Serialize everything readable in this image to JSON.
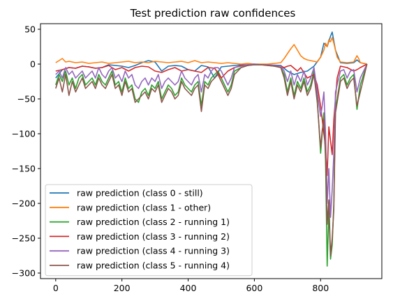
{
  "chart_data": {
    "type": "line",
    "title": "Test prediction raw confidences",
    "xlabel": "",
    "ylabel": "",
    "xlim": [
      -46,
      985
    ],
    "ylim": [
      -308,
      58
    ],
    "xticks": [
      0,
      200,
      400,
      600,
      800
    ],
    "yticks": [
      50,
      0,
      -50,
      -100,
      -150,
      -200,
      -250,
      -300
    ],
    "grid": false,
    "legend_position": "lower-left",
    "series": [
      {
        "name": "raw prediction (class 0 - still)",
        "color": "#1f77b4",
        "x": [
          0,
          20,
          40,
          60,
          80,
          100,
          120,
          140,
          155,
          160,
          180,
          200,
          220,
          240,
          260,
          280,
          300,
          320,
          340,
          360,
          380,
          400,
          420,
          440,
          460,
          480,
          500,
          520,
          540,
          560,
          600,
          640,
          680,
          700,
          720,
          740,
          760,
          780,
          800,
          810,
          820,
          830,
          835,
          845,
          860,
          880,
          900,
          910,
          920,
          940
        ],
        "values": [
          -20,
          -8,
          -5,
          -6,
          -3,
          -4,
          -6,
          -5,
          -2,
          -1,
          -2,
          -3,
          -5,
          -2,
          2,
          5,
          3,
          -10,
          -3,
          -2,
          -3,
          -8,
          -10,
          -2,
          -4,
          -20,
          -4,
          -3,
          -2,
          -1,
          -1,
          -1,
          -2,
          -10,
          -15,
          -12,
          -10,
          -3,
          10,
          30,
          25,
          40,
          46,
          20,
          2,
          1,
          2,
          6,
          2,
          0
        ]
      },
      {
        "name": "raw prediction (class 1 - other)",
        "color": "#ff7f0e",
        "x": [
          0,
          10,
          20,
          30,
          40,
          60,
          80,
          100,
          120,
          140,
          160,
          180,
          200,
          220,
          240,
          260,
          280,
          300,
          320,
          340,
          360,
          380,
          400,
          420,
          440,
          460,
          480,
          500,
          520,
          540,
          560,
          580,
          600,
          620,
          640,
          660,
          680,
          690,
          700,
          710,
          720,
          730,
          740,
          750,
          760,
          780,
          790,
          800,
          810,
          815,
          820,
          825,
          830,
          835,
          840,
          850,
          860,
          880,
          900,
          910,
          915,
          920,
          940
        ],
        "values": [
          2,
          5,
          8,
          3,
          4,
          2,
          3,
          1,
          2,
          3,
          1,
          2,
          3,
          4,
          2,
          3,
          2,
          4,
          3,
          2,
          3,
          4,
          2,
          5,
          2,
          3,
          2,
          1,
          2,
          1,
          0,
          1,
          0,
          0,
          0,
          1,
          2,
          8,
          15,
          22,
          28,
          20,
          12,
          8,
          6,
          4,
          3,
          10,
          20,
          30,
          25,
          35,
          32,
          38,
          30,
          10,
          3,
          2,
          3,
          12,
          8,
          2,
          0
        ]
      },
      {
        "name": "raw prediction (class 2 - running 1)",
        "color": "#2ca02c",
        "x": [
          0,
          10,
          20,
          30,
          40,
          50,
          60,
          70,
          80,
          90,
          100,
          110,
          120,
          130,
          140,
          150,
          160,
          170,
          180,
          190,
          200,
          210,
          220,
          230,
          240,
          250,
          260,
          270,
          280,
          290,
          300,
          310,
          320,
          330,
          340,
          350,
          360,
          370,
          380,
          390,
          400,
          410,
          420,
          430,
          440,
          450,
          460,
          470,
          480,
          490,
          500,
          510,
          520,
          530,
          540,
          560,
          580,
          600,
          620,
          640,
          660,
          680,
          690,
          700,
          710,
          720,
          730,
          740,
          750,
          760,
          770,
          780,
          790,
          800,
          805,
          810,
          815,
          820,
          825,
          830,
          835,
          840,
          845,
          850,
          860,
          870,
          880,
          890,
          900,
          910,
          920,
          940
        ],
        "values": [
          -30,
          -15,
          -25,
          -10,
          -30,
          -20,
          -35,
          -20,
          -15,
          -30,
          -25,
          -20,
          -30,
          -15,
          -25,
          -30,
          -20,
          -10,
          -30,
          -25,
          -40,
          -20,
          -35,
          -30,
          -50,
          -55,
          -40,
          -35,
          -45,
          -30,
          -35,
          -25,
          -50,
          -40,
          -30,
          -35,
          -45,
          -40,
          -20,
          -30,
          -35,
          -40,
          -30,
          -25,
          -60,
          -25,
          -30,
          -20,
          -15,
          -10,
          -20,
          -30,
          -40,
          -30,
          -10,
          -5,
          -2,
          -1,
          -1,
          -2,
          -3,
          -5,
          -15,
          -40,
          -20,
          -45,
          -25,
          -35,
          -20,
          -40,
          -30,
          -10,
          -50,
          -128,
          -100,
          -70,
          -140,
          -290,
          -210,
          -280,
          -260,
          -200,
          -60,
          -50,
          -20,
          -15,
          -30,
          -20,
          -15,
          -65,
          -30,
          0
        ]
      },
      {
        "name": "raw prediction (class 3 - running 2)",
        "color": "#d62728",
        "x": [
          0,
          20,
          40,
          60,
          80,
          100,
          120,
          140,
          160,
          180,
          200,
          220,
          240,
          260,
          280,
          300,
          320,
          340,
          360,
          380,
          400,
          420,
          440,
          460,
          480,
          500,
          520,
          540,
          560,
          580,
          600,
          620,
          640,
          660,
          680,
          690,
          700,
          710,
          720,
          730,
          740,
          760,
          780,
          790,
          800,
          810,
          815,
          820,
          825,
          830,
          835,
          840,
          850,
          860,
          880,
          900,
          910,
          920,
          940
        ],
        "values": [
          -10,
          -8,
          -5,
          -6,
          -3,
          -4,
          -6,
          -5,
          -2,
          -8,
          -5,
          -10,
          -5,
          -3,
          -4,
          -10,
          -12,
          -8,
          -5,
          -10,
          -8,
          -10,
          -12,
          -5,
          -6,
          -20,
          -10,
          -5,
          -2,
          -1,
          0,
          -1,
          -1,
          -2,
          -3,
          -5,
          -3,
          -2,
          -6,
          -10,
          -5,
          -20,
          -15,
          -30,
          -60,
          -100,
          -120,
          -160,
          -90,
          -110,
          -130,
          -80,
          -20,
          -3,
          -5,
          -10,
          -8,
          -5,
          0
        ]
      },
      {
        "name": "raw prediction (class 4 - running 3)",
        "color": "#9467bd",
        "x": [
          0,
          10,
          20,
          30,
          40,
          50,
          60,
          70,
          80,
          90,
          100,
          110,
          120,
          130,
          140,
          150,
          160,
          170,
          180,
          190,
          200,
          210,
          220,
          230,
          240,
          250,
          260,
          270,
          280,
          290,
          300,
          310,
          320,
          330,
          340,
          350,
          360,
          370,
          380,
          390,
          400,
          410,
          420,
          430,
          440,
          450,
          460,
          470,
          480,
          490,
          500,
          510,
          520,
          530,
          540,
          560,
          580,
          600,
          620,
          640,
          660,
          680,
          690,
          700,
          710,
          720,
          730,
          740,
          750,
          760,
          770,
          780,
          790,
          800,
          805,
          810,
          815,
          820,
          825,
          830,
          835,
          840,
          845,
          850,
          860,
          870,
          880,
          890,
          900,
          910,
          920,
          940
        ],
        "values": [
          -15,
          -10,
          -20,
          -5,
          -15,
          -10,
          -20,
          -15,
          -10,
          -20,
          -15,
          -10,
          -20,
          -5,
          -15,
          -20,
          -10,
          -5,
          -20,
          -15,
          -25,
          -10,
          -20,
          -15,
          -30,
          -35,
          -25,
          -20,
          -30,
          -20,
          -25,
          -15,
          -35,
          -25,
          -20,
          -25,
          -30,
          -25,
          -10,
          -20,
          -25,
          -30,
          -20,
          -15,
          -40,
          -15,
          -20,
          -10,
          -5,
          -5,
          -10,
          -20,
          -30,
          -20,
          -5,
          -3,
          -1,
          0,
          -1,
          -1,
          -2,
          -3,
          -10,
          -25,
          -10,
          -30,
          -15,
          -25,
          -10,
          -30,
          -20,
          -5,
          -40,
          -75,
          -60,
          -40,
          -100,
          -200,
          -150,
          -220,
          -180,
          -130,
          -40,
          -30,
          -10,
          -8,
          -20,
          -10,
          -8,
          -40,
          -20,
          0
        ]
      },
      {
        "name": "raw prediction (class 5 - running 4)",
        "color": "#8c564b",
        "x": [
          0,
          10,
          20,
          30,
          40,
          50,
          60,
          70,
          80,
          90,
          100,
          110,
          120,
          130,
          140,
          150,
          160,
          170,
          180,
          190,
          200,
          210,
          220,
          230,
          240,
          250,
          260,
          270,
          280,
          290,
          300,
          310,
          320,
          330,
          340,
          350,
          360,
          370,
          380,
          390,
          400,
          410,
          420,
          430,
          440,
          450,
          460,
          470,
          480,
          490,
          500,
          510,
          520,
          530,
          540,
          560,
          580,
          600,
          620,
          640,
          660,
          680,
          690,
          700,
          710,
          720,
          730,
          740,
          750,
          760,
          770,
          780,
          790,
          800,
          805,
          810,
          815,
          820,
          825,
          830,
          835,
          840,
          845,
          850,
          860,
          870,
          880,
          890,
          900,
          910,
          920,
          940
        ],
        "values": [
          -35,
          -20,
          -40,
          -15,
          -45,
          -25,
          -40,
          -30,
          -20,
          -35,
          -30,
          -25,
          -35,
          -20,
          -30,
          -35,
          -25,
          -15,
          -35,
          -30,
          -45,
          -25,
          -40,
          -35,
          -55,
          -50,
          -45,
          -40,
          -50,
          -35,
          -40,
          -30,
          -55,
          -45,
          -35,
          -40,
          -50,
          -45,
          -25,
          -35,
          -40,
          -45,
          -35,
          -30,
          -68,
          -30,
          -35,
          -25,
          -20,
          -15,
          -25,
          -35,
          -45,
          -35,
          -15,
          -5,
          -2,
          -1,
          -1,
          -2,
          -3,
          -5,
          -20,
          -45,
          -25,
          -50,
          -30,
          -40,
          -25,
          -45,
          -35,
          -15,
          -55,
          -120,
          -95,
          -80,
          -130,
          -230,
          -195,
          -275,
          -250,
          -210,
          -70,
          -55,
          -25,
          -20,
          -35,
          -25,
          -20,
          -60,
          -40,
          0
        ]
      }
    ]
  }
}
